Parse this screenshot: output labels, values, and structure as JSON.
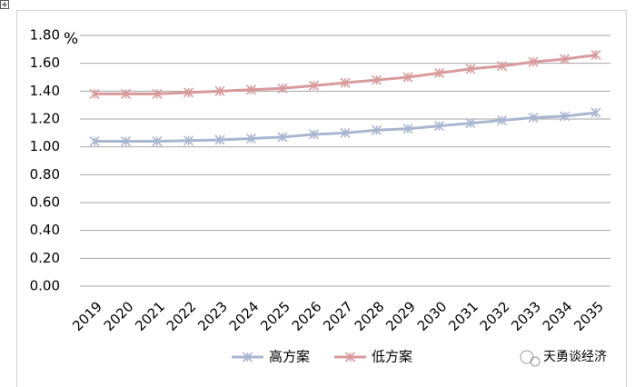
{
  "chart_data": {
    "type": "line",
    "y_unit": "%",
    "categories": [
      "2019",
      "2020",
      "2021",
      "2022",
      "2023",
      "2024",
      "2025",
      "2026",
      "2027",
      "2028",
      "2029",
      "2030",
      "2031",
      "2032",
      "2033",
      "2034",
      "2035"
    ],
    "series": [
      {
        "name": "高方案",
        "color": "#a9b6d0",
        "values": [
          1.04,
          1.04,
          1.04,
          1.045,
          1.05,
          1.06,
          1.07,
          1.09,
          1.1,
          1.12,
          1.13,
          1.15,
          1.17,
          1.19,
          1.21,
          1.22,
          1.245
        ]
      },
      {
        "name": "低方案",
        "color": "#d99a9c",
        "values": [
          1.38,
          1.38,
          1.38,
          1.39,
          1.4,
          1.41,
          1.42,
          1.44,
          1.46,
          1.48,
          1.5,
          1.53,
          1.56,
          1.58,
          1.61,
          1.63,
          1.66
        ]
      }
    ],
    "ylim": [
      0,
      1.8
    ],
    "yticks": [
      {
        "value": 0,
        "label": "0.00"
      },
      {
        "value": 0.2,
        "label": "0.20"
      },
      {
        "value": 0.4,
        "label": "0.40"
      },
      {
        "value": 0.6,
        "label": "0.60"
      },
      {
        "value": 0.8,
        "label": "0.80"
      },
      {
        "value": 1.0,
        "label": "1.00"
      },
      {
        "value": 1.2,
        "label": "1.20"
      },
      {
        "value": 1.4,
        "label": "1.40"
      },
      {
        "value": 1.6,
        "label": "1.60"
      },
      {
        "value": 1.8,
        "label": "1.80"
      }
    ],
    "grid": true,
    "legend": "bottom",
    "watermark": "天勇谈经济"
  }
}
